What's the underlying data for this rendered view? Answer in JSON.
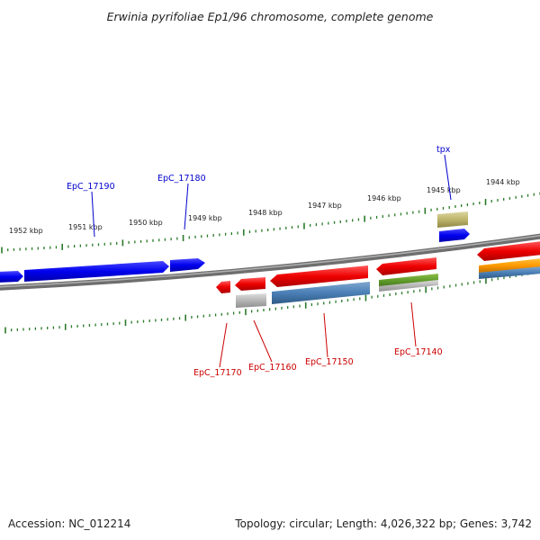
{
  "title": "Erwinia pyrifoliae Ep1/96 chromosome, complete genome",
  "footer": {
    "accession": "Accession: NC_012214",
    "stats": "Topology: circular; Length: 4,026,322 bp; Genes: 3,742"
  },
  "scale_labels": [
    "1952 kbp",
    "1951 kbp",
    "1950 kbp",
    "1949 kbp",
    "1948 kbp",
    "1947 kbp",
    "1946 kbp",
    "1945 kbp",
    "1944 kbp"
  ],
  "gene_labels": {
    "top": [
      "EpC_17190",
      "EpC_17180",
      "tpx"
    ],
    "bottom": [
      "EpC_17170",
      "EpC_17160",
      "EpC_17150",
      "EpC_17140"
    ]
  },
  "colors": {
    "forward_label": "#0000cc",
    "reverse_label": "#cc0000",
    "tick": "#2a7a2a",
    "backbone": "#808080"
  }
}
